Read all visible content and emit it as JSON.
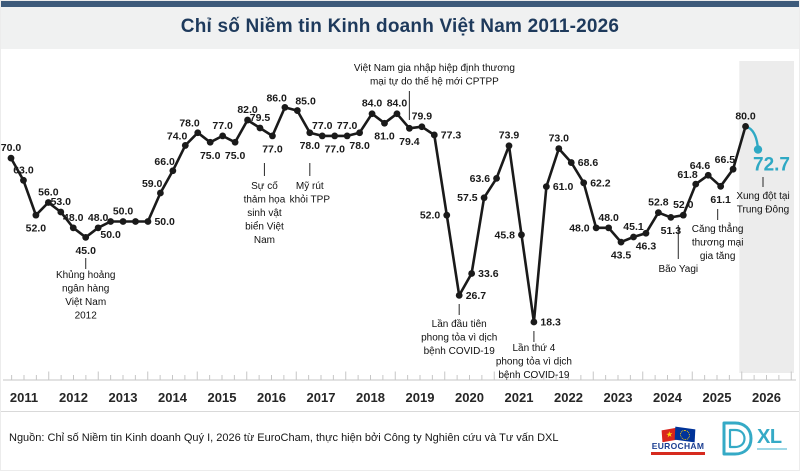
{
  "header": {
    "title": "Chỉ số Niềm tin Kinh doanh Việt Nam 2011-2026"
  },
  "footer": {
    "source": "Nguồn: Chỉ số Niềm tin Kinh doanh Quý I, 2026 từ EuroCham, thực hiện bởi Công ty Nghiên cứu và Tư vấn DXL",
    "eurocham_label": "EUROCHAM",
    "eurocham_star": "★",
    "dxl_d": "D",
    "dxl_xl": "XL"
  },
  "colors": {
    "line": "#1a1a1a",
    "accent_teal": "#2fa9c4",
    "band": "#ececec",
    "axis": "#c6c6c6",
    "axis_bottom": "#d9d9d9",
    "year_label": "#262626",
    "annotation": "#111111",
    "navy": "#1e3a5c"
  },
  "chart_data": {
    "type": "line",
    "title": "Chỉ số Niềm tin Kinh doanh Việt Nam 2011-2026",
    "frequency": "quarterly",
    "x_start": {
      "year": 2011,
      "quarter": 1
    },
    "ylim": [
      0,
      100
    ],
    "grid": false,
    "legend": "none",
    "years": [
      "2011",
      "2012",
      "2013",
      "2014",
      "2015",
      "2016",
      "2017",
      "2018",
      "2019",
      "2020",
      "2021",
      "2022",
      "2023",
      "2024",
      "2025",
      "2026"
    ],
    "values": [
      70.0,
      63.0,
      52.0,
      56.0,
      53.0,
      48.0,
      45.0,
      48.0,
      50.0,
      50.0,
      50.0,
      50.0,
      59.0,
      66.0,
      74.0,
      78.0,
      75.0,
      77.0,
      75.0,
      82.0,
      79.5,
      77.0,
      86.0,
      85.0,
      78.0,
      77.0,
      77.0,
      77.0,
      78.0,
      84.0,
      81.0,
      84.0,
      79.4,
      79.9,
      77.3,
      52.0,
      26.7,
      33.6,
      57.5,
      63.6,
      73.9,
      45.8,
      18.3,
      61.0,
      73.0,
      68.6,
      62.2,
      48.0,
      48.0,
      43.5,
      45.1,
      46.3,
      52.8,
      51.3,
      52.0,
      61.8,
      64.6,
      61.1,
      66.5,
      80.0,
      72.7
    ],
    "label_pos": [
      "a",
      "a",
      "b",
      "a",
      "a",
      "a",
      "b",
      "a",
      "b",
      "a",
      "n",
      "r",
      "al",
      "al",
      "al",
      "al",
      "b",
      "a",
      "b",
      "a",
      "a",
      "b",
      "al",
      "ar",
      "b",
      "a",
      "b",
      "a",
      "b",
      "a",
      "b",
      "a",
      "b",
      "a",
      "r",
      "l",
      "r",
      "r",
      "l",
      "l",
      "a",
      "l",
      "r",
      "r",
      "a",
      "r",
      "r",
      "l",
      "a",
      "b",
      "a",
      "b",
      "a",
      "b",
      "a",
      "al",
      "al",
      "b",
      "al",
      "a",
      "big"
    ],
    "highlight": {
      "index": 60,
      "value": 72.7,
      "color": "#2fa9c4"
    },
    "forecast_band": {
      "covers": "2026",
      "color": "#ececec"
    },
    "annotations": [
      {
        "index": 6,
        "dx": 0,
        "lines": [
          "Khủng hoảng",
          "ngân hàng",
          "Việt Nam",
          "2012"
        ],
        "tick": [
          257,
          268
        ],
        "text_y": 277
      },
      {
        "index": 21,
        "dx": -8,
        "lines": [
          "Sự cố",
          "thảm họa",
          "sinh vật",
          "biển Việt",
          "Nam"
        ],
        "tick": [
          162,
          175
        ],
        "text_y": 188
      },
      {
        "index": 24,
        "dx": 0,
        "lines": [
          "Mỹ rút",
          "khỏi TPP"
        ],
        "tick": [
          162,
          175
        ],
        "text_y": 188
      },
      {
        "index": 32,
        "dx": 0,
        "text_dx": 25,
        "above": true,
        "lines": [
          "Việt Nam gia nhập hiệp định thương",
          "mại tự do thế hệ mới CPTPP"
        ],
        "tick": [
          90,
          119
        ],
        "text_y": 70
      },
      {
        "index": 36,
        "dx": 0,
        "lines": [
          "Lần đầu tiên",
          "phong tỏa vì dịch",
          "bệnh COVID-19"
        ],
        "tick": [
          303,
          314
        ],
        "text_y": 326
      },
      {
        "index": 42,
        "dx": 0,
        "lines": [
          "Lần thứ 4",
          "phong tỏa vì dịch",
          "bệnh COVID-19"
        ],
        "tick": [
          330,
          341
        ],
        "text_y": 350
      },
      {
        "index": 54,
        "dx": -5,
        "lines": [
          "Bão Yagi"
        ],
        "tick": [
          224,
          258
        ],
        "text_y": 271
      },
      {
        "index": 57,
        "dx": -3,
        "lines": [
          "Căng thẳng",
          "thương mại",
          "gia tăng"
        ],
        "tick": [
          208,
          219
        ],
        "text_y": 231
      },
      {
        "index": 60,
        "dx": 5,
        "lines": [
          "Xung đột tại",
          "Trung Đông"
        ],
        "tick": [
          176,
          186
        ],
        "text_y": 198
      }
    ]
  }
}
